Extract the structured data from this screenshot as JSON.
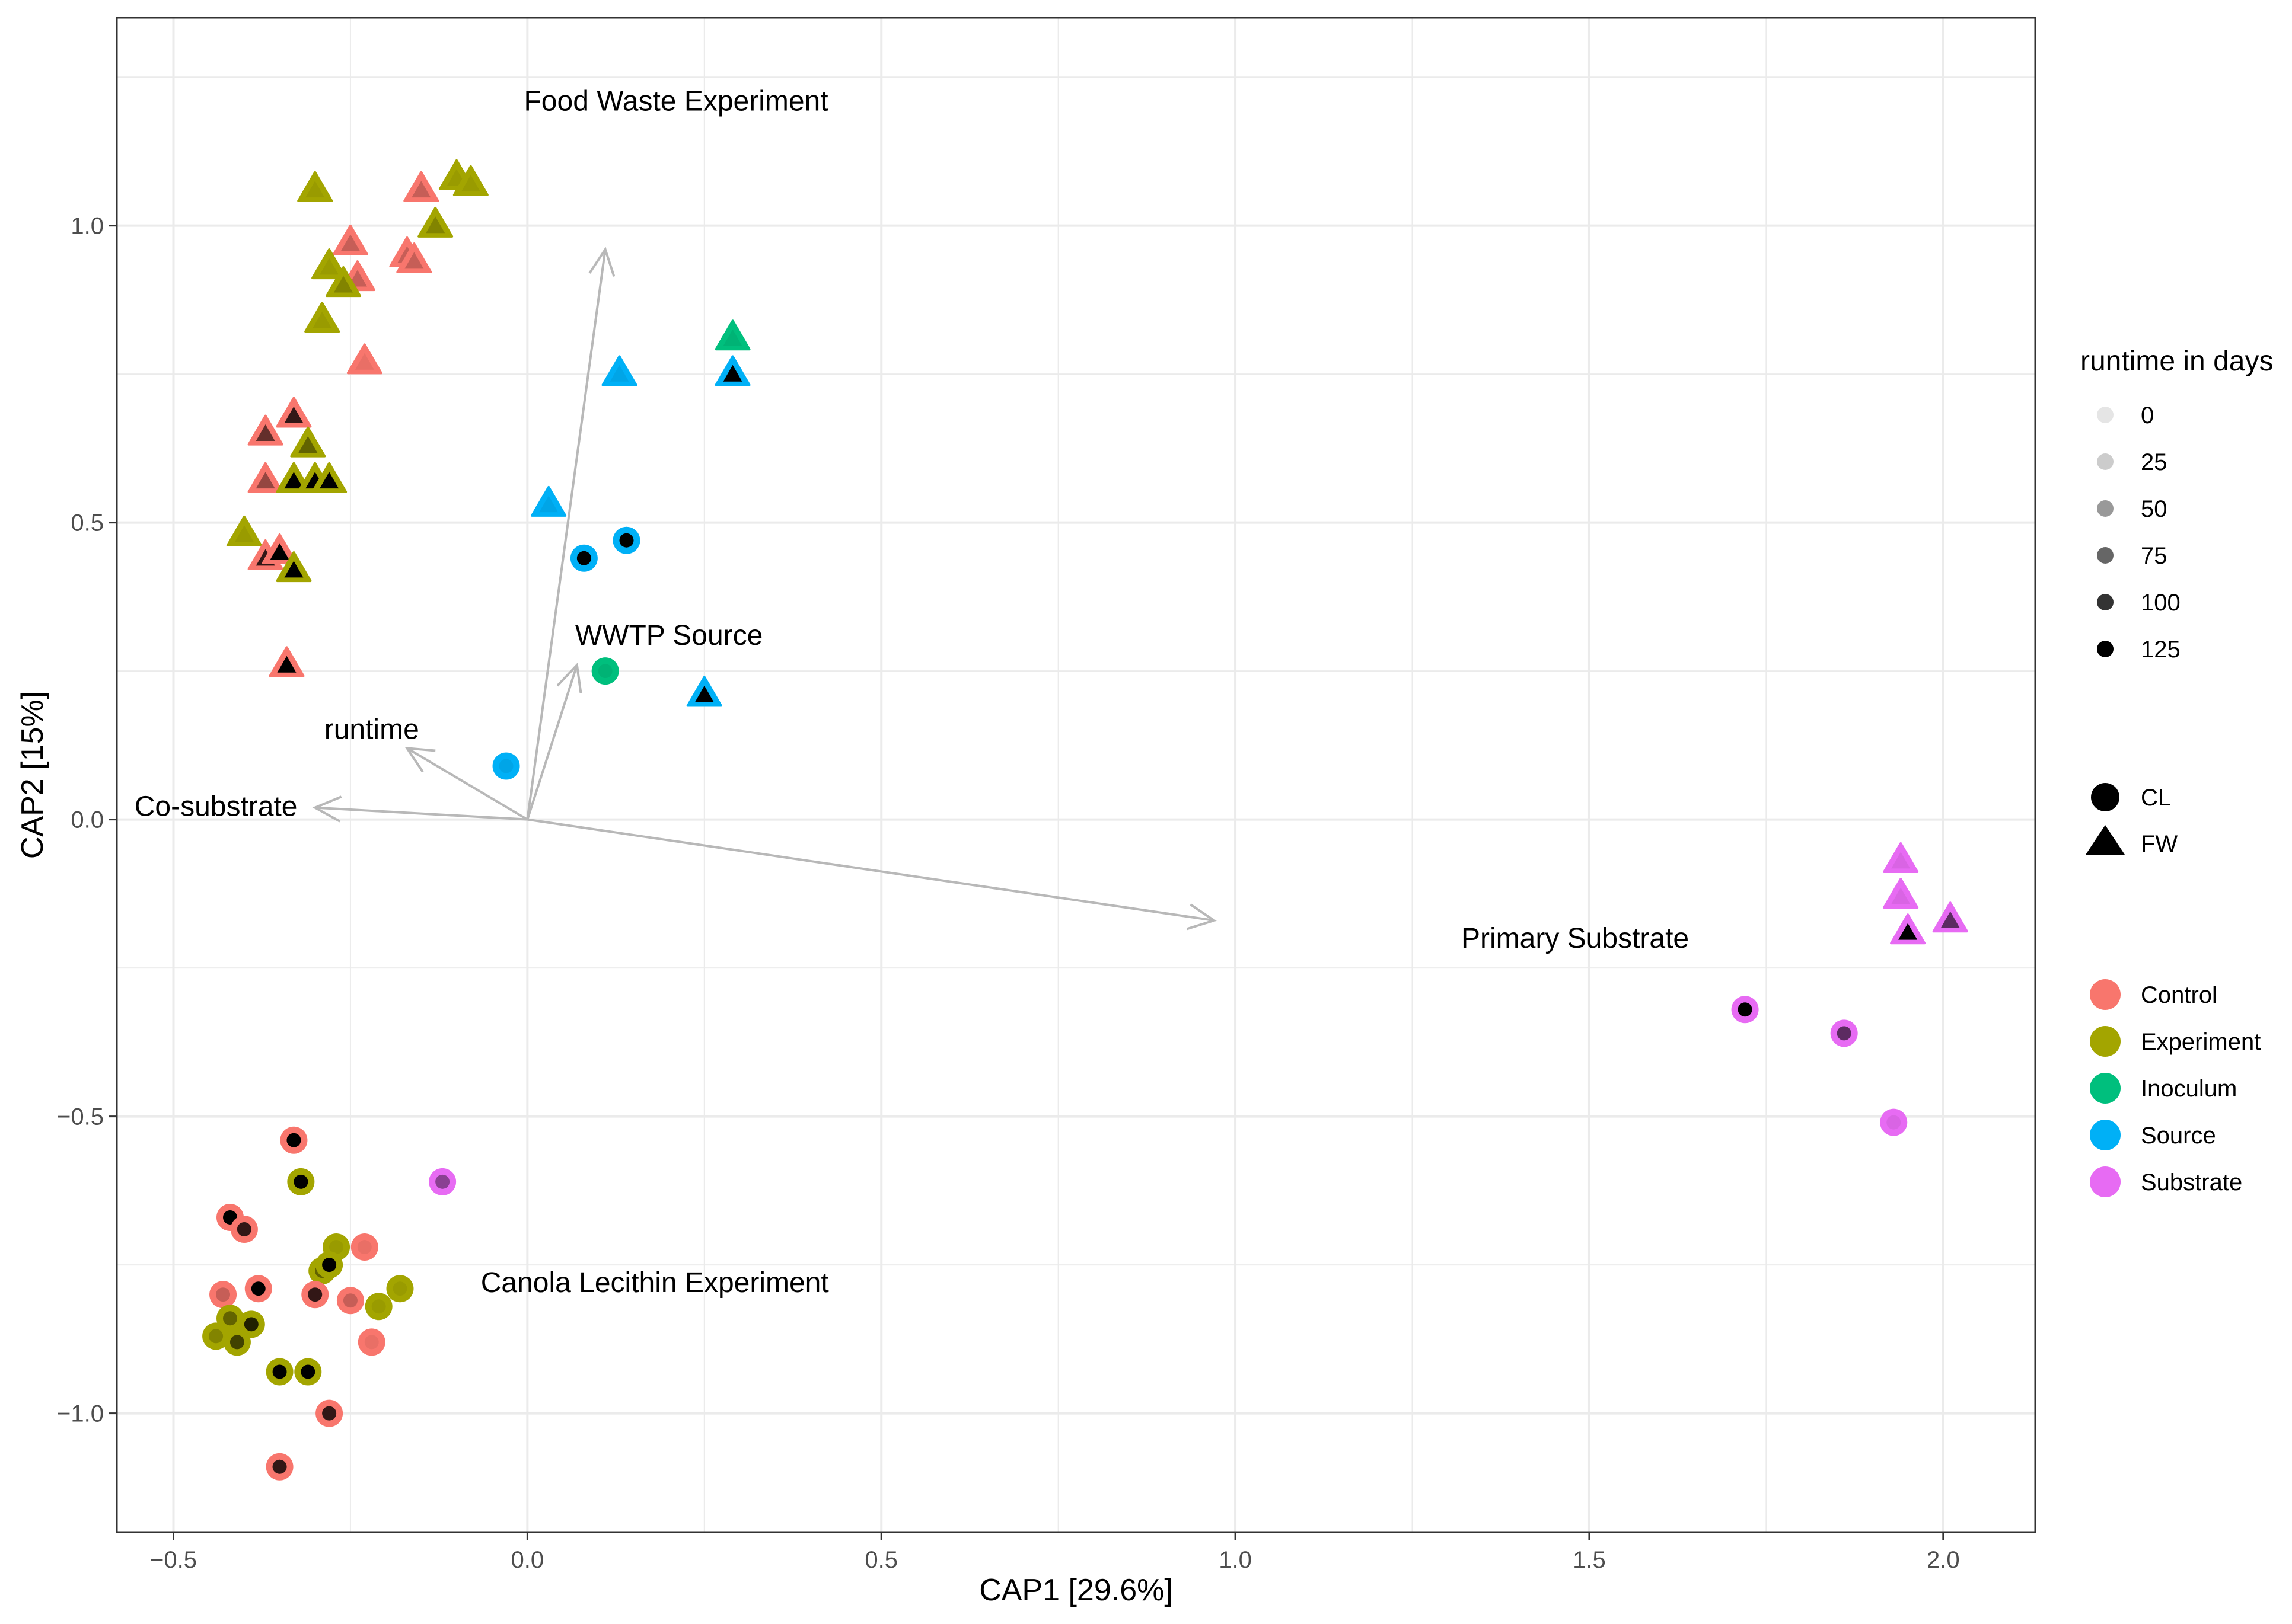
{
  "chart_data": {
    "type": "scatter",
    "title": "",
    "xlabel": "CAP1   [29.6%]",
    "ylabel": "CAP2   [15%]",
    "xlim": [
      -0.58,
      2.13
    ],
    "ylim": [
      -1.2,
      1.35
    ],
    "xticks": [
      -0.5,
      0.0,
      0.5,
      1.0,
      1.5,
      2.0
    ],
    "xtick_labels": [
      "−0.5",
      "0.0",
      "0.5",
      "1.0",
      "1.5",
      "2.0"
    ],
    "yticks": [
      -1.0,
      -0.5,
      0.0,
      0.5,
      1.0
    ],
    "ytick_labels": [
      "−1.0",
      "−0.5",
      "0.0",
      "0.5",
      "1.0"
    ],
    "grid": true,
    "colors": {
      "Control": "#F8766D",
      "Experiment": "#A3A500",
      "Inoculum": "#00BF7D",
      "Source": "#00B0F6",
      "Substrate": "#E76BF3",
      "arrow": "#b8b8b8",
      "grid": "#ebebeb"
    },
    "annotations": [
      {
        "text": "Food Waste Experiment",
        "x": 0.21,
        "y": 1.21
      },
      {
        "text": "WWTP Source",
        "x": 0.2,
        "y": 0.31
      },
      {
        "text": "Canola Lecithin Experiment",
        "x": 0.18,
        "y": -0.78
      },
      {
        "text": "Primary Substrate",
        "x": 1.48,
        "y": -0.2
      }
    ],
    "vectors": [
      {
        "label": "Co-substrate",
        "x": -0.3,
        "y": 0.02,
        "lx": -0.44,
        "ly": 0.02
      },
      {
        "label": "runtime",
        "x": -0.17,
        "y": 0.12,
        "lx": -0.22,
        "ly": 0.15
      },
      {
        "label": "",
        "x": 0.11,
        "y": 0.96,
        "lx": 0.11,
        "ly": 0.96
      },
      {
        "label": "",
        "x": 0.07,
        "y": 0.26,
        "lx": 0.07,
        "ly": 0.26
      },
      {
        "label": "",
        "x": 0.97,
        "y": -0.17,
        "lx": 0.97,
        "ly": -0.17
      }
    ],
    "points": [
      {
        "x": -0.3,
        "y": 1.06,
        "group": "Experiment",
        "shape": "FW",
        "runtime": 0
      },
      {
        "x": -0.1,
        "y": 1.08,
        "group": "Experiment",
        "shape": "FW",
        "runtime": 0
      },
      {
        "x": -0.08,
        "y": 1.07,
        "group": "Experiment",
        "shape": "FW",
        "runtime": 0
      },
      {
        "x": -0.15,
        "y": 1.06,
        "group": "Control",
        "shape": "FW",
        "runtime": 25
      },
      {
        "x": -0.13,
        "y": 1.0,
        "group": "Experiment",
        "shape": "FW",
        "runtime": 25
      },
      {
        "x": -0.25,
        "y": 0.97,
        "group": "Control",
        "shape": "FW",
        "runtime": 25
      },
      {
        "x": -0.17,
        "y": 0.95,
        "group": "Control",
        "shape": "FW",
        "runtime": 25
      },
      {
        "x": -0.16,
        "y": 0.94,
        "group": "Control",
        "shape": "FW",
        "runtime": 25
      },
      {
        "x": -0.28,
        "y": 0.93,
        "group": "Experiment",
        "shape": "FW",
        "runtime": 0
      },
      {
        "x": -0.24,
        "y": 0.91,
        "group": "Control",
        "shape": "FW",
        "runtime": 25
      },
      {
        "x": -0.26,
        "y": 0.9,
        "group": "Experiment",
        "shape": "FW",
        "runtime": 25
      },
      {
        "x": -0.29,
        "y": 0.84,
        "group": "Experiment",
        "shape": "FW",
        "runtime": 0
      },
      {
        "x": -0.23,
        "y": 0.77,
        "group": "Control",
        "shape": "FW",
        "runtime": 0
      },
      {
        "x": -0.37,
        "y": 0.65,
        "group": "Control",
        "shape": "FW",
        "runtime": 75
      },
      {
        "x": -0.33,
        "y": 0.68,
        "group": "Control",
        "shape": "FW",
        "runtime": 100
      },
      {
        "x": -0.31,
        "y": 0.63,
        "group": "Experiment",
        "shape": "FW",
        "runtime": 50
      },
      {
        "x": -0.37,
        "y": 0.57,
        "group": "Control",
        "shape": "FW",
        "runtime": 50
      },
      {
        "x": -0.33,
        "y": 0.57,
        "group": "Experiment",
        "shape": "FW",
        "runtime": 125
      },
      {
        "x": -0.3,
        "y": 0.57,
        "group": "Experiment",
        "shape": "FW",
        "runtime": 125
      },
      {
        "x": -0.28,
        "y": 0.57,
        "group": "Experiment",
        "shape": "FW",
        "runtime": 125
      },
      {
        "x": -0.4,
        "y": 0.48,
        "group": "Experiment",
        "shape": "FW",
        "runtime": 0
      },
      {
        "x": -0.37,
        "y": 0.44,
        "group": "Control",
        "shape": "FW",
        "runtime": 100
      },
      {
        "x": -0.35,
        "y": 0.45,
        "group": "Control",
        "shape": "FW",
        "runtime": 125
      },
      {
        "x": -0.33,
        "y": 0.42,
        "group": "Experiment",
        "shape": "FW",
        "runtime": 125
      },
      {
        "x": -0.34,
        "y": 0.26,
        "group": "Control",
        "shape": "FW",
        "runtime": 125
      },
      {
        "x": 0.29,
        "y": 0.81,
        "group": "Inoculum",
        "shape": "FW",
        "runtime": 0
      },
      {
        "x": 0.13,
        "y": 0.75,
        "group": "Source",
        "shape": "FW",
        "runtime": 0
      },
      {
        "x": 0.29,
        "y": 0.75,
        "group": "Source",
        "shape": "FW",
        "runtime": 125
      },
      {
        "x": 0.03,
        "y": 0.53,
        "group": "Source",
        "shape": "FW",
        "runtime": 0
      },
      {
        "x": 0.25,
        "y": 0.21,
        "group": "Source",
        "shape": "FW",
        "runtime": 125
      },
      {
        "x": 0.08,
        "y": 0.44,
        "group": "Source",
        "shape": "CL",
        "runtime": 125
      },
      {
        "x": 0.14,
        "y": 0.47,
        "group": "Source",
        "shape": "CL",
        "runtime": 125
      },
      {
        "x": 0.11,
        "y": 0.25,
        "group": "Inoculum",
        "shape": "CL",
        "runtime": 0
      },
      {
        "x": -0.03,
        "y": 0.09,
        "group": "Source",
        "shape": "CL",
        "runtime": 0
      },
      {
        "x": 1.94,
        "y": -0.07,
        "group": "Substrate",
        "shape": "FW",
        "runtime": 0
      },
      {
        "x": 1.94,
        "y": -0.13,
        "group": "Substrate",
        "shape": "FW",
        "runtime": 0
      },
      {
        "x": 1.95,
        "y": -0.19,
        "group": "Substrate",
        "shape": "FW",
        "runtime": 125
      },
      {
        "x": 2.01,
        "y": -0.17,
        "group": "Substrate",
        "shape": "FW",
        "runtime": 75
      },
      {
        "x": 1.72,
        "y": -0.32,
        "group": "Substrate",
        "shape": "CL",
        "runtime": 125
      },
      {
        "x": 1.86,
        "y": -0.36,
        "group": "Substrate",
        "shape": "CL",
        "runtime": 75
      },
      {
        "x": 1.93,
        "y": -0.51,
        "group": "Substrate",
        "shape": "CL",
        "runtime": 0
      },
      {
        "x": -0.12,
        "y": -0.61,
        "group": "Substrate",
        "shape": "CL",
        "runtime": 50
      },
      {
        "x": -0.33,
        "y": -0.54,
        "group": "Control",
        "shape": "CL",
        "runtime": 125
      },
      {
        "x": -0.32,
        "y": -0.61,
        "group": "Experiment",
        "shape": "CL",
        "runtime": 125
      },
      {
        "x": -0.42,
        "y": -0.67,
        "group": "Control",
        "shape": "CL",
        "runtime": 125
      },
      {
        "x": -0.4,
        "y": -0.69,
        "group": "Control",
        "shape": "CL",
        "runtime": 100
      },
      {
        "x": -0.27,
        "y": -0.72,
        "group": "Experiment",
        "shape": "CL",
        "runtime": 0
      },
      {
        "x": -0.23,
        "y": -0.72,
        "group": "Control",
        "shape": "CL",
        "runtime": 0
      },
      {
        "x": -0.29,
        "y": -0.76,
        "group": "Experiment",
        "shape": "CL",
        "runtime": 50
      },
      {
        "x": -0.28,
        "y": -0.75,
        "group": "Experiment",
        "shape": "CL",
        "runtime": 125
      },
      {
        "x": -0.18,
        "y": -0.79,
        "group": "Experiment",
        "shape": "CL",
        "runtime": 0
      },
      {
        "x": -0.38,
        "y": -0.79,
        "group": "Control",
        "shape": "CL",
        "runtime": 125
      },
      {
        "x": -0.43,
        "y": -0.8,
        "group": "Control",
        "shape": "CL",
        "runtime": 25
      },
      {
        "x": -0.3,
        "y": -0.8,
        "group": "Control",
        "shape": "CL",
        "runtime": 100
      },
      {
        "x": -0.25,
        "y": -0.81,
        "group": "Control",
        "shape": "CL",
        "runtime": 25
      },
      {
        "x": -0.21,
        "y": -0.82,
        "group": "Experiment",
        "shape": "CL",
        "runtime": 0
      },
      {
        "x": -0.42,
        "y": -0.84,
        "group": "Experiment",
        "shape": "CL",
        "runtime": 50
      },
      {
        "x": -0.39,
        "y": -0.85,
        "group": "Experiment",
        "shape": "CL",
        "runtime": 100
      },
      {
        "x": -0.44,
        "y": -0.87,
        "group": "Experiment",
        "shape": "CL",
        "runtime": 25
      },
      {
        "x": -0.41,
        "y": -0.88,
        "group": "Experiment",
        "shape": "CL",
        "runtime": 75
      },
      {
        "x": -0.22,
        "y": -0.88,
        "group": "Control",
        "shape": "CL",
        "runtime": 0
      },
      {
        "x": -0.35,
        "y": -0.93,
        "group": "Experiment",
        "shape": "CL",
        "runtime": 125
      },
      {
        "x": -0.31,
        "y": -0.93,
        "group": "Experiment",
        "shape": "CL",
        "runtime": 125
      },
      {
        "x": -0.28,
        "y": -1.0,
        "group": "Control",
        "shape": "CL",
        "runtime": 100
      },
      {
        "x": -0.35,
        "y": -1.09,
        "group": "Control",
        "shape": "CL",
        "runtime": 100
      }
    ],
    "legends": {
      "runtime": {
        "title": "runtime in days",
        "labels": [
          "0",
          "25",
          "50",
          "75",
          "100",
          "125"
        ]
      },
      "shape": {
        "labels": [
          "CL",
          "FW"
        ]
      },
      "color": {
        "labels": [
          "Control",
          "Experiment",
          "Inoculum",
          "Source",
          "Substrate"
        ]
      }
    }
  }
}
